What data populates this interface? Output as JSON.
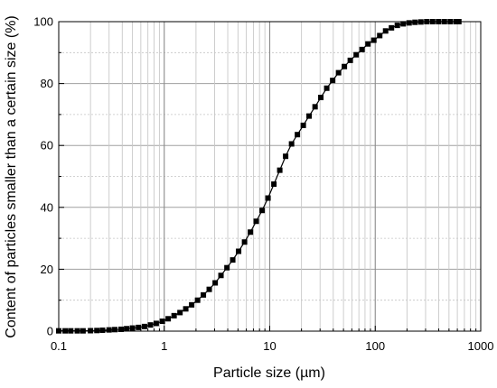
{
  "chart_data": {
    "type": "scatter",
    "x_scale": "log",
    "xlabel": "Particle size (µm)",
    "ylabel": "Content of particles smaller than a certain size (%)",
    "xlim": [
      0.1,
      1000
    ],
    "ylim": [
      0,
      100
    ],
    "x_ticks": [
      "0.1",
      "1",
      "10",
      "100",
      "1000"
    ],
    "y_ticks": [
      "0",
      "20",
      "40",
      "60",
      "80",
      "100"
    ],
    "grid": true,
    "line_color": "#000000",
    "marker_color": "#000000",
    "series": [
      {
        "points": [
          [
            0.1,
            0.1
          ],
          [
            0.115,
            0.1
          ],
          [
            0.13,
            0.1
          ],
          [
            0.15,
            0.1
          ],
          [
            0.17,
            0.1
          ],
          [
            0.2,
            0.15
          ],
          [
            0.23,
            0.2
          ],
          [
            0.26,
            0.3
          ],
          [
            0.3,
            0.4
          ],
          [
            0.34,
            0.5
          ],
          [
            0.39,
            0.6
          ],
          [
            0.44,
            0.8
          ],
          [
            0.5,
            1.0
          ],
          [
            0.57,
            1.2
          ],
          [
            0.65,
            1.5
          ],
          [
            0.74,
            2.0
          ],
          [
            0.84,
            2.5
          ],
          [
            0.96,
            3.2
          ],
          [
            1.09,
            4.0
          ],
          [
            1.24,
            5.0
          ],
          [
            1.41,
            6.0
          ],
          [
            1.6,
            7.2
          ],
          [
            1.82,
            8.5
          ],
          [
            2.07,
            10.0
          ],
          [
            2.35,
            11.7
          ],
          [
            2.67,
            13.5
          ],
          [
            3.04,
            15.6
          ],
          [
            3.45,
            18.0
          ],
          [
            3.93,
            20.5
          ],
          [
            4.46,
            23.0
          ],
          [
            5.07,
            25.8
          ],
          [
            5.77,
            28.8
          ],
          [
            6.56,
            32.0
          ],
          [
            7.45,
            35.5
          ],
          [
            8.47,
            39.0
          ],
          [
            9.63,
            43.0
          ],
          [
            10.95,
            47.5
          ],
          [
            12.45,
            52.0
          ],
          [
            14.15,
            56.5
          ],
          [
            16.1,
            60.5
          ],
          [
            18.3,
            63.5
          ],
          [
            20.8,
            66.5
          ],
          [
            23.6,
            69.5
          ],
          [
            26.9,
            72.5
          ],
          [
            30.5,
            75.5
          ],
          [
            34.7,
            78.5
          ],
          [
            39.5,
            81.0
          ],
          [
            44.9,
            83.5
          ],
          [
            51.0,
            85.5
          ],
          [
            58.0,
            87.5
          ],
          [
            66.0,
            89.3
          ],
          [
            75.0,
            91.0
          ],
          [
            85.3,
            92.8
          ],
          [
            97.0,
            94.0
          ],
          [
            110.3,
            95.5
          ],
          [
            125.4,
            97.0
          ],
          [
            142.5,
            98.0
          ],
          [
            162.0,
            98.8
          ],
          [
            184.2,
            99.3
          ],
          [
            209.5,
            99.6
          ],
          [
            238.2,
            99.8
          ],
          [
            270.8,
            99.9
          ],
          [
            307.9,
            100.0
          ],
          [
            350.0,
            100.0
          ],
          [
            398.0,
            100.0
          ],
          [
            452.5,
            100.0
          ],
          [
            514.5,
            100.0
          ],
          [
            585.0,
            100.0
          ],
          [
            620.0,
            100.0
          ]
        ]
      }
    ]
  }
}
